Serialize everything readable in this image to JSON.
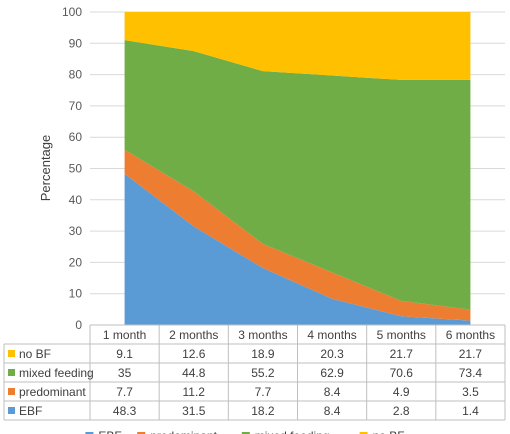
{
  "chart_data": {
    "type": "area",
    "stacked": true,
    "categories": [
      "1 month",
      "2 months",
      "3 months",
      "4 months",
      "5 months",
      "6 months"
    ],
    "ylabel": "Percentage",
    "ylim": [
      0,
      100
    ],
    "yticks": [
      0,
      10,
      20,
      30,
      40,
      50,
      60,
      70,
      80,
      90,
      100
    ],
    "grid": true,
    "legend_position": "bottom",
    "series": [
      {
        "name": "EBF",
        "values": [
          48.3,
          31.5,
          18.2,
          8.4,
          2.8,
          1.4
        ],
        "color": "#5b9bd5"
      },
      {
        "name": "predominant",
        "values": [
          7.7,
          11.2,
          7.7,
          8.4,
          4.9,
          3.5
        ],
        "color": "#ed7d31"
      },
      {
        "name": "mixed feeding",
        "values": [
          35,
          44.8,
          55.2,
          62.9,
          70.6,
          73.4
        ],
        "color": "#70ad47"
      },
      {
        "name": "no BF",
        "values": [
          9.1,
          12.6,
          18.9,
          20.3,
          21.7,
          21.7
        ],
        "color": "#ffc000"
      }
    ],
    "table_rows": [
      {
        "name": "no BF",
        "values": [
          "9.1",
          "12.6",
          "18.9",
          "20.3",
          "21.7",
          "21.7"
        ]
      },
      {
        "name": "mixed feeding",
        "values": [
          "35",
          "44.8",
          "55.2",
          "62.9",
          "70.6",
          "73.4"
        ]
      },
      {
        "name": "predominant",
        "values": [
          "7.7",
          "11.2",
          "7.7",
          "8.4",
          "4.9",
          "3.5"
        ]
      },
      {
        "name": "EBF",
        "values": [
          "48.3",
          "31.5",
          "18.2",
          "8.4",
          "2.8",
          "1.4"
        ]
      }
    ]
  }
}
